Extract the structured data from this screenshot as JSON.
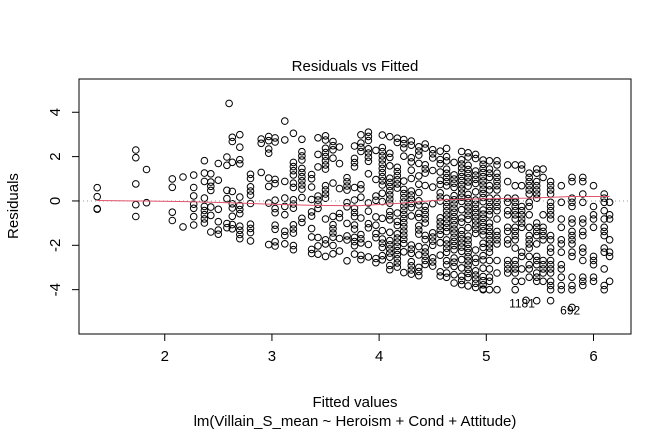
{
  "chart_data": {
    "type": "scatter",
    "title": "Residuals vs Fitted",
    "xlabel": "Fitted values",
    "ylabel": "Residuals",
    "subtitle": "lm(Villain_S_mean ~ Heroism + Cond + Attitude)",
    "xlim": [
      1.2,
      6.35
    ],
    "ylim": [
      -6.0,
      5.5
    ],
    "xticks": [
      2,
      3,
      4,
      5,
      6
    ],
    "xtick_labels": [
      "2",
      "3",
      "4",
      "5",
      "6"
    ],
    "yticks": [
      -4,
      -2,
      0,
      2,
      4
    ],
    "ytick_labels": [
      "-4",
      "-2",
      "0",
      "2",
      "4"
    ],
    "grid": false,
    "zero_line": {
      "y": 0,
      "color": "#999999",
      "style": "dotted"
    },
    "smoother_color": "#DF536B",
    "point_color": "#000000",
    "fitted_levels": [
      1.37,
      1.73,
      1.83,
      2.07,
      2.17,
      2.27,
      2.37,
      2.43,
      2.5,
      2.58,
      2.63,
      2.7,
      2.8,
      2.9,
      2.97,
      3.03,
      3.12,
      3.2,
      3.28,
      3.37,
      3.43,
      3.5,
      3.57,
      3.63,
      3.7,
      3.77,
      3.83,
      3.9,
      3.97,
      4.03,
      4.1,
      4.17,
      4.23,
      4.3,
      4.37,
      4.43,
      4.5,
      4.57,
      4.63,
      4.7,
      4.77,
      4.83,
      4.9,
      4.97,
      5.03,
      5.1,
      5.2,
      5.27,
      5.33,
      5.4,
      5.47,
      5.53,
      5.6,
      5.7,
      5.8,
      5.9,
      6.0,
      6.1,
      6.15
    ],
    "smoother": {
      "x": [
        1.37,
        1.8,
        2.2,
        2.6,
        3.0,
        3.4,
        3.8,
        4.2,
        4.6,
        5.0,
        5.4,
        5.8,
        6.15
      ],
      "y": [
        0.02,
        0.0,
        -0.03,
        -0.08,
        -0.15,
        -0.2,
        -0.22,
        -0.1,
        0.05,
        0.1,
        0.13,
        0.2,
        0.2
      ]
    },
    "outliers": [
      {
        "label": "1181",
        "x": 5.37,
        "y": -4.48
      },
      {
        "label": "692",
        "x": 5.82,
        "y": -4.8
      }
    ]
  }
}
